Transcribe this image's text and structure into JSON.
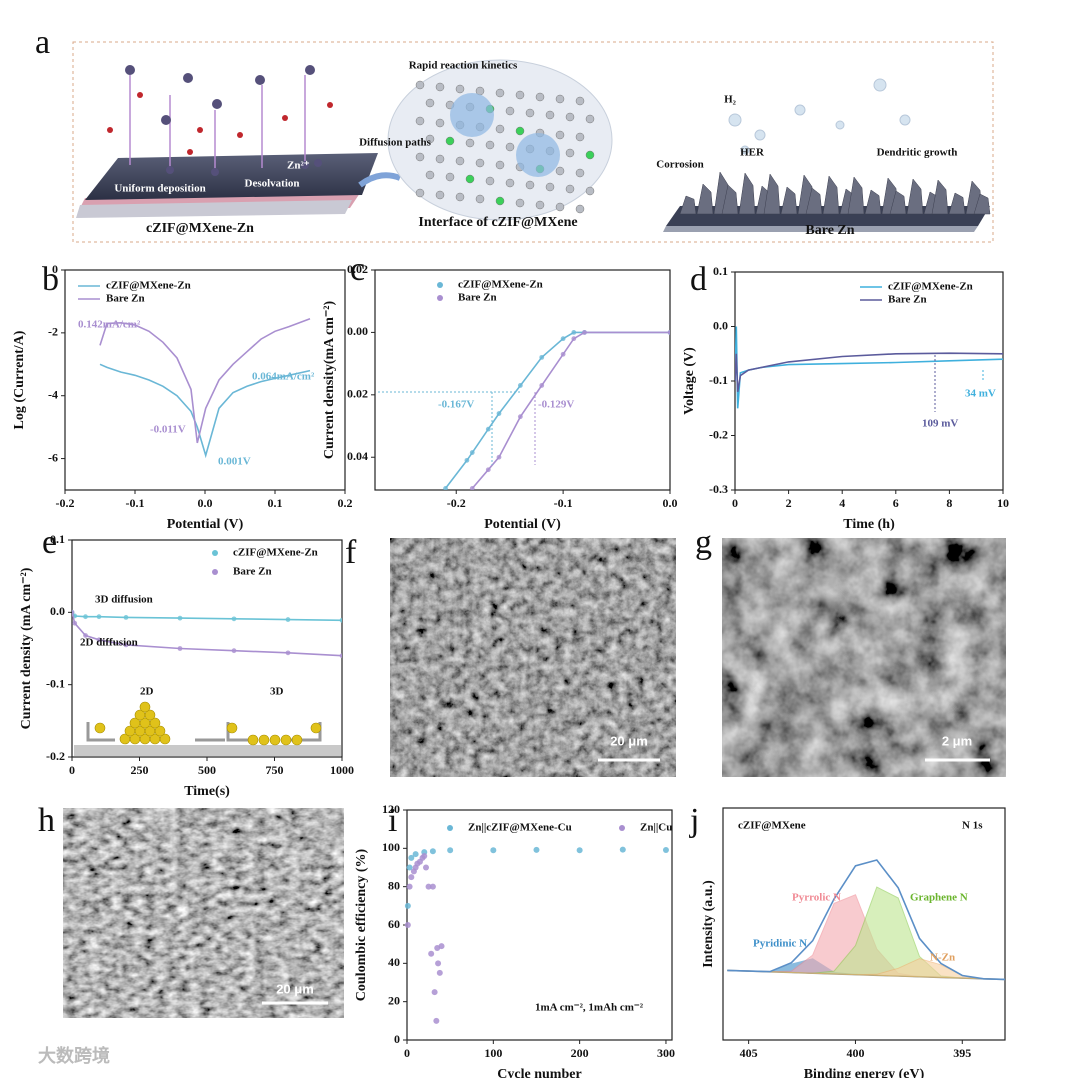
{
  "panel_labels": [
    "a",
    "b",
    "c",
    "d",
    "e",
    "f",
    "g",
    "h",
    "i",
    "j"
  ],
  "schematic": {
    "left_title": "cZIF@MXene-Zn",
    "middle_title": "Interface of cZIF@MXene",
    "right_title": "Bare Zn",
    "rapid": "Rapid reaction kinetics",
    "diffusion": "Diffusion paths",
    "zn_ion": "Zn²⁺",
    "uniform": "Uniform deposition",
    "desolvation": "Desolvation",
    "h2": "H₂",
    "corrosion": "Corrosion",
    "her": "HER",
    "dendritic": "Dendritic growth"
  },
  "sem": [
    {
      "scale_bar": "20 μm"
    },
    {
      "scale_bar": "2 μm"
    },
    {
      "scale_bar": "20 μm"
    }
  ],
  "watermark": "大数跨境",
  "chart_data": [
    {
      "type": "line",
      "xlabel": "Potential (V)",
      "ylabel": "Log (Current/A)",
      "x": [
        -0.15,
        -0.14,
        -0.12,
        -0.1,
        -0.08,
        -0.06,
        -0.04,
        -0.02,
        -0.011,
        0.001,
        0.02,
        0.04,
        0.06,
        0.08,
        0.1,
        0.12,
        0.15
      ],
      "series": [
        {
          "name": "cZIF@MXene-Zn",
          "color": "#6ab7d6",
          "values": [
            -3.0,
            -3.1,
            -3.25,
            -3.35,
            -3.5,
            -3.7,
            -4.0,
            -4.5,
            -5.0,
            -5.9,
            -4.4,
            -3.9,
            -3.7,
            -3.55,
            -3.45,
            -3.35,
            -3.2
          ]
        },
        {
          "name": "Bare Zn",
          "color": "#a98fd0",
          "values": [
            -2.4,
            -1.7,
            -1.68,
            -1.75,
            -1.95,
            -2.3,
            -2.8,
            -3.8,
            -5.5,
            -4.4,
            -3.5,
            -3.0,
            -2.6,
            -2.2,
            -1.95,
            -1.8,
            -1.55
          ]
        }
      ],
      "xlim": [
        -0.2,
        0.2
      ],
      "xticks": [
        -0.2,
        -0.1,
        {
          "value": 0,
          "label": "0.0"
        },
        0.1,
        0.2
      ],
      "ylim": [
        -7,
        0
      ],
      "yticks": [
        -6,
        -4,
        -2,
        0
      ],
      "legend": "upper left",
      "annotations": [
        "0.142mA/cm²",
        "0.064mA/cm²",
        "-0.011V",
        "0.001V"
      ]
    },
    {
      "type": "line",
      "markers": true,
      "xlabel": "Potential (V)",
      "ylabel": "Current density(mA cm⁻²)",
      "x": [
        -0.21,
        -0.19,
        -0.185,
        -0.17,
        -0.16,
        -0.14,
        -0.12,
        -0.1,
        -0.09,
        -0.08,
        0
      ],
      "series": [
        {
          "name": "cZIF@MXene-Zn",
          "color": "#6ab7d6",
          "values": [
            -0.05,
            -0.041,
            -0.0385,
            -0.031,
            -0.026,
            -0.017,
            -0.008,
            -0.002,
            0,
            0,
            0
          ]
        },
        {
          "name": "Bare Zn",
          "color": "#a98fd0",
          "values": [
            null,
            null,
            -0.05,
            -0.044,
            -0.04,
            -0.027,
            -0.017,
            -0.007,
            -0.002,
            0,
            0
          ]
        }
      ],
      "xlim": [
        -0.276,
        0
      ],
      "xticks": [
        -0.2,
        -0.1,
        {
          "value": 0,
          "label": "0.0"
        }
      ],
      "ylim": [
        -0.0505,
        0.02
      ],
      "yticks": [
        0.02,
        {
          "value": 0,
          "label": "0.00"
        },
        {
          "value": -0.02,
          "label": "0.02"
        },
        {
          "value": -0.04,
          "label": "0.04"
        }
      ],
      "legend": "upper left",
      "annotations": [
        "-0.167V",
        "-0.129V"
      ]
    },
    {
      "type": "line",
      "xlabel": "Time (h)",
      "ylabel": "Voltage (V)",
      "x": [
        0,
        0.05,
        0.1,
        0.2,
        0.5,
        1,
        2,
        4,
        6,
        8,
        10
      ],
      "series": [
        {
          "name": "cZIF@MXene-Zn",
          "color": "#3fb0dd",
          "values": [
            -0.1,
            0,
            -0.15,
            -0.085,
            -0.08,
            -0.075,
            -0.07,
            -0.068,
            -0.066,
            -0.063,
            -0.06
          ]
        },
        {
          "name": "Bare Zn",
          "color": "#5b5b9c",
          "values": [
            -0.1,
            -0.05,
            -0.12,
            -0.09,
            -0.08,
            -0.075,
            -0.065,
            -0.055,
            -0.05,
            -0.049,
            -0.05
          ]
        }
      ],
      "xlim": [
        0,
        10
      ],
      "xticks": [
        0,
        2,
        4,
        6,
        8,
        10
      ],
      "ylim": [
        -0.3,
        0.1
      ],
      "yticks": [
        0.1,
        {
          "value": 0,
          "label": "0.0"
        },
        -0.1,
        -0.2,
        -0.3
      ],
      "legend": "upper right",
      "annotations": [
        "34 mV",
        "109 mV"
      ]
    },
    {
      "type": "line",
      "markers": true,
      "xlabel": "Time(s)",
      "ylabel": "Current density (mA cm⁻²)",
      "x": [
        0,
        10,
        50,
        100,
        200,
        400,
        600,
        800,
        1000
      ],
      "series": [
        {
          "name": "cZIF@MXene-Zn",
          "color": "#6ac3d6",
          "values": [
            0,
            -0.005,
            -0.006,
            -0.006,
            -0.007,
            -0.008,
            -0.009,
            -0.01,
            -0.011
          ]
        },
        {
          "name": "Bare Zn",
          "color": "#a98fd0",
          "values": [
            0,
            -0.015,
            -0.032,
            -0.038,
            -0.045,
            -0.05,
            -0.053,
            -0.056,
            -0.06
          ]
        }
      ],
      "xlim": [
        0,
        1000
      ],
      "xticks": [
        0,
        250,
        500,
        750,
        1000
      ],
      "ylim": [
        -0.2,
        0.1
      ],
      "yticks": [
        0.1,
        {
          "value": 0,
          "label": "0.0"
        },
        -0.1,
        -0.2
      ],
      "legend": "upper right",
      "annotations": [
        "3D diffusion",
        "2D diffusion",
        "2D",
        "3D"
      ]
    },
    {
      "type": "scatter",
      "xlabel": "Cycle number",
      "ylabel": "Coulombic efficiency (%)",
      "series": [
        {
          "name": "Zn||cZIF@MXene-Cu",
          "color": "#6ab7d6",
          "x": [
            1,
            3,
            5,
            10,
            20,
            30,
            50,
            100,
            150,
            200,
            250,
            300
          ],
          "values": [
            70,
            90,
            95,
            97,
            98,
            98.5,
            99,
            99,
            99.2,
            99,
            99.3,
            99.1
          ]
        },
        {
          "name": "Zn||Cu",
          "color": "#a98fd0",
          "x": [
            1,
            3,
            5,
            8,
            10,
            12,
            15,
            18,
            20,
            22,
            25,
            28,
            30,
            32,
            34,
            35,
            36,
            38,
            40
          ],
          "values": [
            60,
            80,
            85,
            88,
            90,
            92,
            93,
            95,
            96,
            90,
            80,
            45,
            80,
            25,
            10,
            48,
            40,
            35,
            49
          ]
        }
      ],
      "xlim": [
        0,
        307
      ],
      "xticks": [
        0,
        100,
        200,
        300
      ],
      "ylim": [
        0,
        120
      ],
      "yticks": [
        0,
        20,
        40,
        60,
        80,
        100,
        120
      ],
      "legend": "upper center",
      "annotations": [
        "1mA cm⁻²,  1mAh cm⁻²"
      ]
    },
    {
      "type": "area",
      "xlabel": "Binding energy (eV)",
      "ylabel": "Intensity (a.u.)",
      "x": [
        406,
        405,
        404,
        403,
        402,
        401,
        400,
        399,
        398,
        397,
        396,
        395,
        394,
        393
      ],
      "series": [
        {
          "color": "#999999",
          "values": [
            30,
            29.7,
            29.4,
            29.1,
            28.8,
            28.5,
            28.2,
            27.9,
            27.6,
            27.3,
            27.0,
            26.7,
            26.4,
            26.1
          ]
        },
        {
          "name": "Pyridinic N",
          "color": "#3d8fc9",
          "fill": "#3d8fc9",
          "values": [
            30,
            29.7,
            29.5,
            32.7,
            35.0,
            29.2,
            28.2,
            27.9,
            27.6,
            27.3,
            27.0,
            26.7,
            26.4,
            26.1
          ]
        },
        {
          "name": "Pyrrolic N",
          "color": "#f08a94",
          "fill": "#f4a9b0",
          "values": [
            30,
            29.7,
            29.4,
            29.7,
            36.6,
            58.9,
            62.6,
            39.2,
            28.7,
            27.3,
            27.0,
            26.7,
            26.4,
            26.1
          ]
        },
        {
          "name": "Graphene N",
          "color": "#8ccc50",
          "fill": "#bde58f",
          "values": [
            30,
            29.7,
            29.4,
            29.1,
            28.8,
            29.7,
            40.7,
            65.9,
            61.2,
            36.0,
            27.6,
            26.7,
            26.4,
            26.1
          ]
        },
        {
          "name": "N-Zn",
          "color": "#f0b070",
          "fill": "#f7cfa0",
          "values": [
            30,
            29.7,
            29.4,
            29.1,
            28.8,
            28.5,
            28.2,
            28.3,
            30.9,
            35.1,
            32.4,
            27.8,
            26.4,
            26.1
          ]
        },
        {
          "color": "#5b8fc7",
          "values": [
            30,
            29.7,
            29.5,
            33.3,
            42.8,
            60.8,
            75.1,
            77.6,
            65.6,
            43.8,
            33.0,
            27.8,
            26.4,
            26.1
          ]
        }
      ],
      "xlim": [
        406.2,
        393
      ],
      "xticks": [
        405,
        400,
        395
      ],
      "ylim": [
        0,
        100
      ],
      "annotations": [
        "cZIF@MXene",
        "N 1s"
      ]
    }
  ]
}
